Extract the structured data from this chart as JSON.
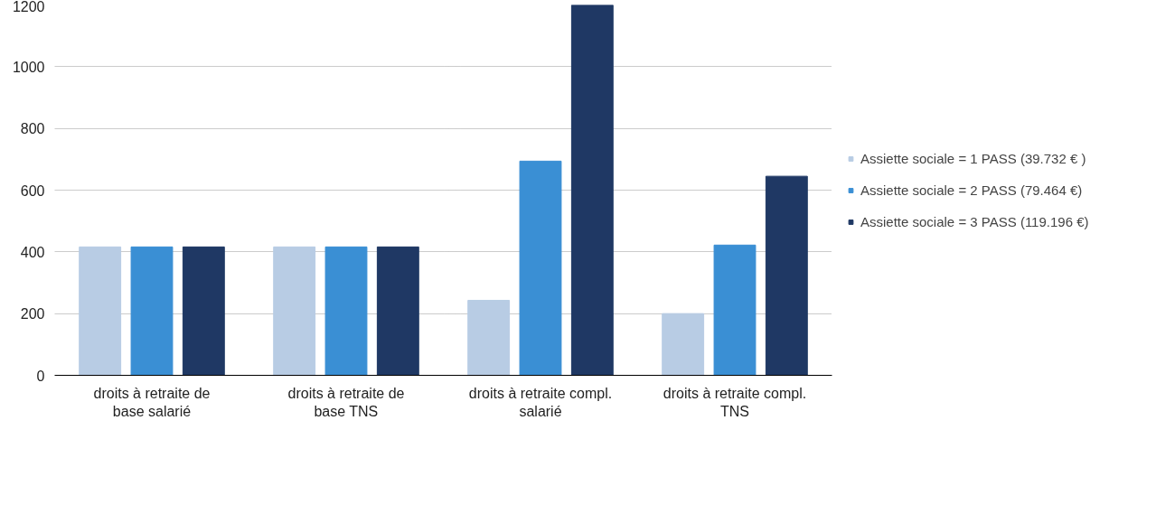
{
  "chart_data": {
    "type": "bar",
    "categories": [
      "droits à retraite de base salarié",
      "droits à retraite de base TNS",
      "droits à retraite compl. salarié",
      "droits à retraite compl. TNS"
    ],
    "series": [
      {
        "name": "Assiette sociale = 1 PASS (39.732 € )",
        "color": "#b8cce4",
        "values": [
          416,
          416,
          243,
          200
        ]
      },
      {
        "name": "Assiette sociale = 2 PASS (79.464 €)",
        "color": "#3a8fd4",
        "values": [
          416,
          416,
          694,
          422
        ]
      },
      {
        "name": "Assiette sociale = 3 PASS (119.196 €)",
        "color": "#1f3864",
        "values": [
          416,
          416,
          1200,
          645
        ]
      }
    ],
    "ylim": [
      0,
      1200
    ],
    "yticks": [
      0,
      200,
      400,
      600,
      800,
      1000,
      1200
    ],
    "grid": "y",
    "legend": "right"
  }
}
